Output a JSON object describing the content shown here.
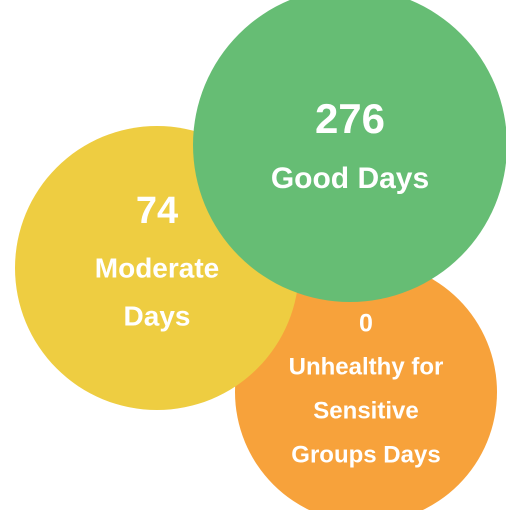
{
  "nodes": [
    {
      "value": 0,
      "label_lines": [
        "Unhealthy for",
        "Sensitive",
        "Groups Days"
      ],
      "color": "#f7a23b"
    },
    {
      "value": 74,
      "label_lines": [
        "Moderate",
        "Days"
      ],
      "color": "#eecd41"
    },
    {
      "value": 276,
      "label_lines": [
        "Good Days"
      ],
      "color": "#66bd74"
    }
  ]
}
